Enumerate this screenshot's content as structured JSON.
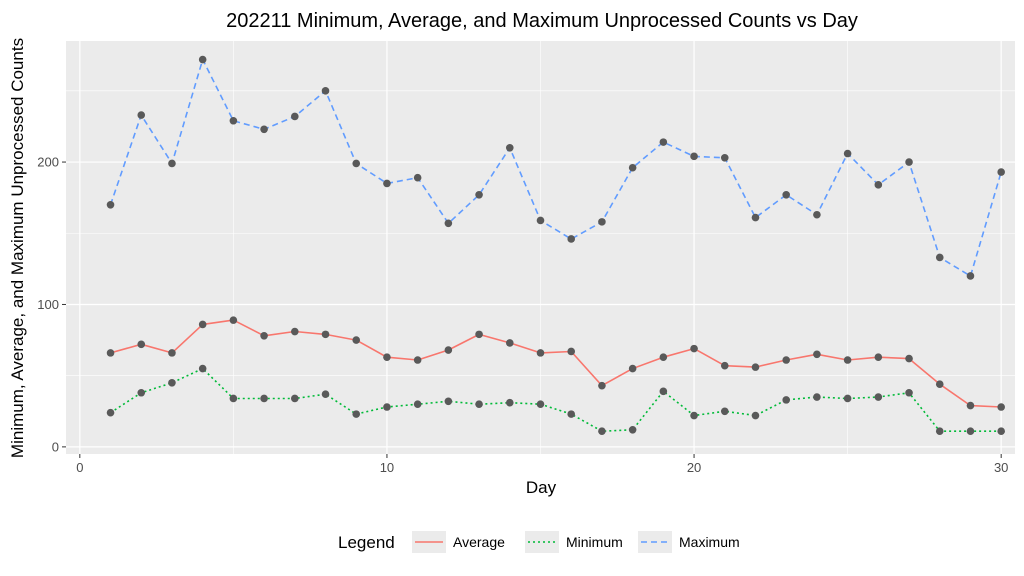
{
  "chart_data": {
    "type": "line",
    "title": "202211 Minimum, Average, and Maximum Unprocessed Counts vs Day",
    "xlabel": "Day",
    "ylabel": "Minimum, Average, and Maximum Unprocessed Counts",
    "xlim": [
      -0.45,
      30.45
    ],
    "ylim": [
      -5,
      285
    ],
    "x_ticks": [
      0,
      10,
      20,
      30
    ],
    "x_tick_labels": [
      "0",
      "10",
      "20",
      "30"
    ],
    "y_ticks": [
      0,
      100,
      200
    ],
    "y_tick_labels": [
      "0",
      "100",
      "200"
    ],
    "grid": true,
    "legend": {
      "title": "Legend",
      "position": "bottom"
    },
    "x": [
      1,
      2,
      3,
      4,
      5,
      6,
      7,
      8,
      9,
      10,
      11,
      12,
      13,
      14,
      15,
      16,
      17,
      18,
      19,
      20,
      21,
      22,
      23,
      24,
      25,
      26,
      27,
      28,
      29,
      30
    ],
    "series": [
      {
        "name": "Average",
        "color": "#F8766D",
        "linestyle": "solid",
        "values": [
          66,
          72,
          66,
          86,
          89,
          78,
          81,
          79,
          75,
          63,
          61,
          68,
          79,
          73,
          66,
          67,
          43,
          55,
          63,
          69,
          57,
          56,
          61,
          65,
          61,
          63,
          62,
          44,
          29,
          28
        ]
      },
      {
        "name": "Minimum",
        "color": "#00BA38",
        "linestyle": "dotted",
        "values": [
          24,
          38,
          45,
          55,
          34,
          34,
          34,
          37,
          23,
          28,
          30,
          32,
          30,
          31,
          30,
          23,
          11,
          12,
          39,
          22,
          25,
          22,
          33,
          35,
          34,
          35,
          38,
          11,
          11,
          11
        ]
      },
      {
        "name": "Maximum",
        "color": "#619CFF",
        "linestyle": "dashed",
        "values": [
          170,
          233,
          199,
          272,
          229,
          223,
          232,
          250,
          199,
          185,
          189,
          157,
          177,
          210,
          159,
          146,
          158,
          196,
          214,
          204,
          203,
          161,
          177,
          163,
          206,
          184,
          200,
          133,
          120,
          193
        ]
      }
    ],
    "point_color": "#595959",
    "panel_background": "#EBEBEB"
  }
}
